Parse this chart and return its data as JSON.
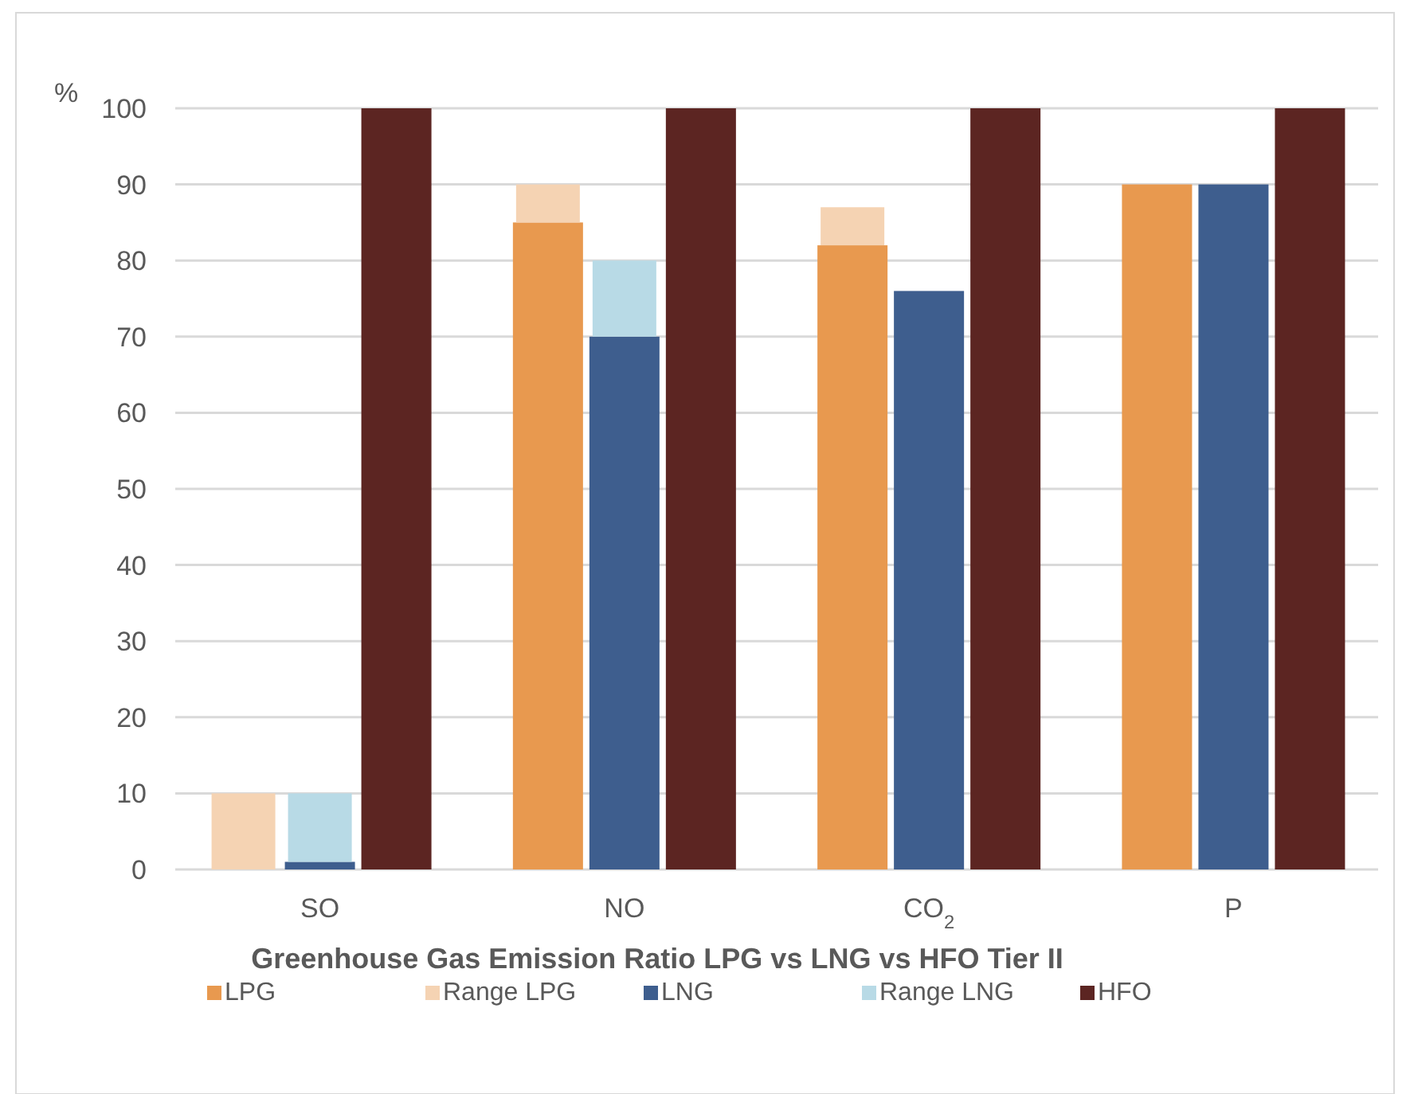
{
  "chart_data": {
    "type": "bar",
    "title": "Greenhouse Gas Emission Ratio LPG vs LNG vs HFO Tier II",
    "ylabel": "%",
    "categories": [
      "SO",
      "NO",
      "CO$_{2}$",
      "P"
    ],
    "series": [
      {
        "name": "LPG",
        "color": "#e8994f",
        "values": [
          null,
          85,
          82,
          90
        ]
      },
      {
        "name": "Range LPG",
        "color": "#f5d3b3",
        "values": [
          10,
          5,
          5,
          null
        ],
        "base": [
          0,
          85,
          82,
          null
        ]
      },
      {
        "name": "LNG",
        "color": "#3e5e8e",
        "values": [
          1,
          70,
          76,
          90
        ]
      },
      {
        "name": "Range LNG",
        "color": "#b8dae6",
        "values": [
          9,
          10,
          null,
          null
        ],
        "base": [
          1,
          70,
          null,
          null
        ]
      },
      {
        "name": "HFO",
        "color": "#5c2522",
        "values": [
          100,
          100,
          100,
          100
        ]
      }
    ],
    "ylim": [
      0,
      100
    ],
    "yticks": [
      0,
      10,
      20,
      30,
      40,
      50,
      60,
      70,
      80,
      90,
      100
    ],
    "grid": "y",
    "legend": "bottom"
  }
}
